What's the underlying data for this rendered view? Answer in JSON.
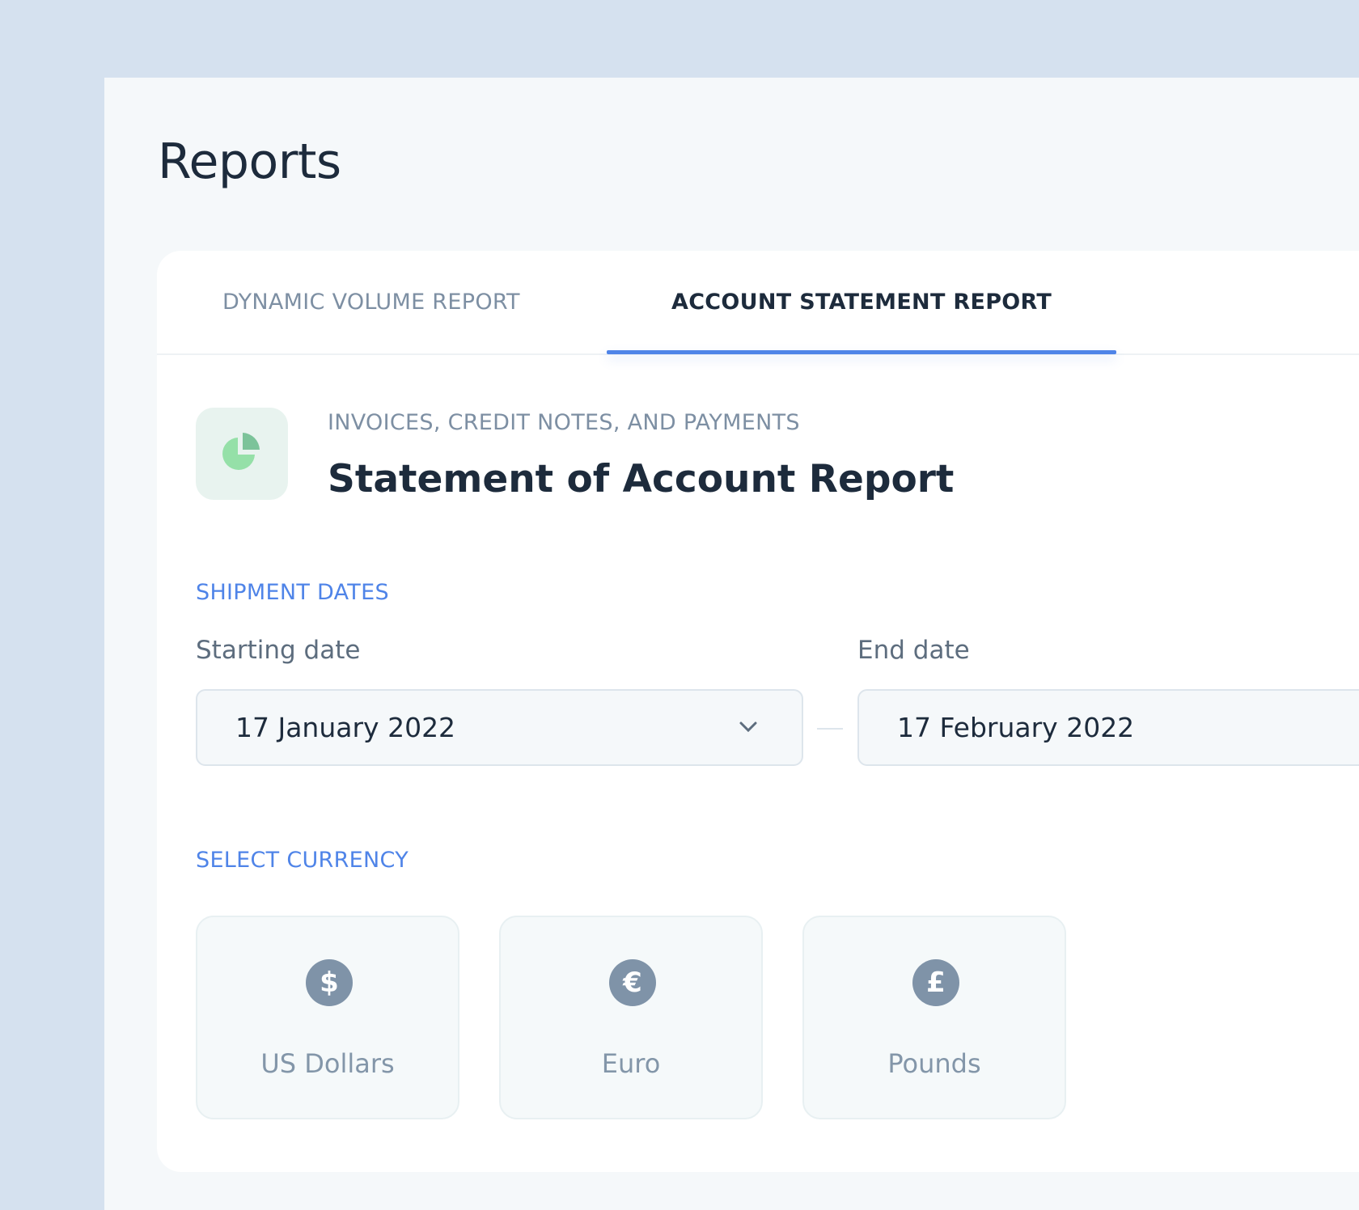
{
  "page": {
    "title": "Reports"
  },
  "tabs": [
    {
      "label": "DYNAMIC VOLUME REPORT",
      "active": false
    },
    {
      "label": "ACCOUNT STATEMENT REPORT",
      "active": true
    }
  ],
  "report": {
    "icon": "pie-chart-icon",
    "subtitle": "INVOICES, CREDIT NOTES, AND PAYMENTS",
    "title": "Statement of Account Report"
  },
  "shipment": {
    "section": "SHIPMENT DATES",
    "start_label": "Starting date",
    "start_value": "17 January 2022",
    "end_label": "End date",
    "end_value": "17 February 2022"
  },
  "currency": {
    "section": "SELECT CURRENCY",
    "options": [
      {
        "label": "US Dollars",
        "symbol": "$",
        "icon": "dollar-icon"
      },
      {
        "label": "Euro",
        "symbol": "€",
        "icon": "euro-icon"
      },
      {
        "label": "Pounds",
        "symbol": "£",
        "icon": "pound-icon"
      }
    ]
  },
  "colors": {
    "accent": "#4f84e8",
    "background": "#d5e1ef",
    "icon_green": "#95e0a8"
  }
}
